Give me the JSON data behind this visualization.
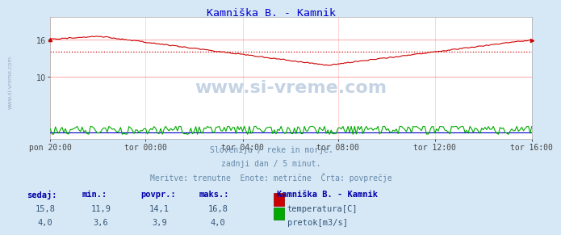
{
  "title": "Kamniška B. - Kamnik",
  "title_color": "#0000cc",
  "bg_color": "#d6e8f5",
  "plot_bg_color": "#ffffff",
  "grid_color_h": "#ff9999",
  "grid_color_v": "#ffcccc",
  "temp_color": "#cc0000",
  "flow_color": "#00aa00",
  "blue_line_color": "#0000cc",
  "avg_line_color": "#cc0000",
  "temp_avg": 14.1,
  "temp_min": 11.9,
  "temp_max": 16.8,
  "temp_current": 15.8,
  "flow_avg": 3.9,
  "flow_min": 3.6,
  "flow_max": 4.0,
  "flow_current": 4.0,
  "xticklabels": [
    "pon 20:00",
    "tor 00:00",
    "tor 04:00",
    "tor 08:00",
    "tor 12:00",
    "tor 16:00"
  ],
  "yticks": [
    10,
    16
  ],
  "ymin": 0,
  "ymax": 19.73,
  "text_info_1": "Slovenija / reke in morje.",
  "text_info_2": "zadnji dan / 5 minut.",
  "text_info_3": "Meritve: trenutne  Enote: metrične  Črta: povprečje",
  "legend_title": "Kamniška B. - Kamnik",
  "legend_label_temp": "temperatura[C]",
  "legend_label_flow": "pretok[m3/s]",
  "table_headers": [
    "sedaj:",
    "min.:",
    "povpr.:",
    "maks.:"
  ],
  "table_temp": [
    "15,8",
    "11,9",
    "14,1",
    "16,8"
  ],
  "table_flow": [
    "4,0",
    "3,6",
    "3,9",
    "4,0"
  ],
  "watermark": "www.si-vreme.com",
  "sidebar_text": "www.si-vreme.com",
  "n_points": 289
}
